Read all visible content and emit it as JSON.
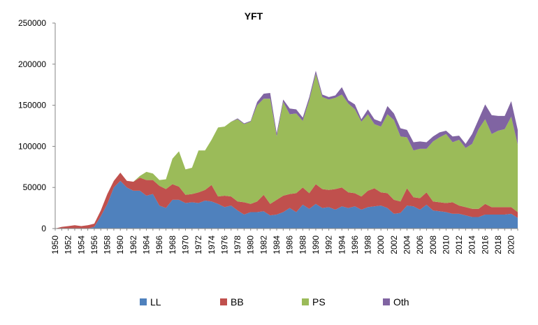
{
  "chart_data": {
    "type": "area",
    "stacked": true,
    "title": "YFT",
    "xlabel": "",
    "ylabel": "",
    "ylim": [
      0,
      250000
    ],
    "yticks": [
      0,
      50000,
      100000,
      150000,
      200000,
      250000
    ],
    "ytick_labels": [
      "0",
      "50000",
      "100000",
      "150000",
      "200000",
      "250000"
    ],
    "xlim": [
      1950,
      2021
    ],
    "xticks": [
      1950,
      1952,
      1954,
      1956,
      1958,
      1960,
      1962,
      1964,
      1966,
      1968,
      1970,
      1972,
      1974,
      1976,
      1978,
      1980,
      1982,
      1984,
      1986,
      1988,
      1990,
      1992,
      1994,
      1996,
      1998,
      2000,
      2002,
      2004,
      2006,
      2008,
      2010,
      2012,
      2014,
      2016,
      2018,
      2020
    ],
    "xtick_labels": [
      "1950",
      "1952",
      "1954",
      "1956",
      "1958",
      "1960",
      "1962",
      "1964",
      "1966",
      "1968",
      "1970",
      "1972",
      "1974",
      "1976",
      "1978",
      "1980",
      "1982",
      "1984",
      "1986",
      "1988",
      "1990",
      "1992",
      "1994",
      "1996",
      "1998",
      "2000",
      "2002",
      "2004",
      "2006",
      "2008",
      "2010",
      "2012",
      "2014",
      "2016",
      "2018",
      "2020"
    ],
    "grid": false,
    "legend_position": "bottom",
    "x": [
      1950,
      1951,
      1952,
      1953,
      1954,
      1955,
      1956,
      1957,
      1958,
      1959,
      1960,
      1961,
      1962,
      1963,
      1964,
      1965,
      1966,
      1967,
      1968,
      1969,
      1970,
      1971,
      1972,
      1973,
      1974,
      1975,
      1976,
      1977,
      1978,
      1979,
      1980,
      1981,
      1982,
      1983,
      1984,
      1985,
      1986,
      1987,
      1988,
      1989,
      1990,
      1991,
      1992,
      1993,
      1994,
      1995,
      1996,
      1997,
      1998,
      1999,
      2000,
      2001,
      2002,
      2003,
      2004,
      2005,
      2006,
      2007,
      2008,
      2009,
      2010,
      2011,
      2012,
      2013,
      2014,
      2015,
      2016,
      2017,
      2018,
      2019,
      2020,
      2021
    ],
    "series": [
      {
        "name": "LL",
        "color": "#4F81BD",
        "values": [
          0,
          0,
          0,
          0,
          0,
          0,
          2000,
          15000,
          30000,
          50000,
          58000,
          50000,
          46000,
          46000,
          40000,
          42000,
          28000,
          25000,
          35000,
          35000,
          31000,
          32000,
          31000,
          34000,
          33000,
          30000,
          26000,
          28000,
          22000,
          17000,
          20000,
          20000,
          21000,
          16000,
          17000,
          20000,
          25000,
          20000,
          29000,
          24000,
          30000,
          25000,
          26000,
          23000,
          27000,
          25000,
          27000,
          23000,
          26000,
          27000,
          28000,
          25000,
          18000,
          19000,
          28000,
          27000,
          23000,
          29000,
          22000,
          21000,
          20000,
          18000,
          18000,
          16000,
          14000,
          14000,
          17000,
          17000,
          17000,
          17000,
          18000,
          13000
        ]
      },
      {
        "name": "BB",
        "color": "#C0504D",
        "values": [
          0,
          2000,
          3000,
          4000,
          3000,
          4000,
          4000,
          7000,
          12000,
          8000,
          10000,
          8000,
          11000,
          16000,
          19000,
          17000,
          24000,
          23000,
          19000,
          16000,
          10000,
          10000,
          13000,
          13000,
          20000,
          9000,
          14000,
          11000,
          11000,
          15000,
          10000,
          13000,
          20000,
          14000,
          18000,
          20000,
          17000,
          23000,
          21000,
          19000,
          24000,
          23000,
          21000,
          25000,
          23000,
          19000,
          16000,
          16000,
          20000,
          22000,
          16000,
          18000,
          17000,
          14000,
          21000,
          11000,
          14000,
          15000,
          11000,
          11000,
          11000,
          14000,
          10000,
          10000,
          10000,
          10000,
          13000,
          9000,
          9000,
          9000,
          8000,
          7000
        ]
      },
      {
        "name": "PS",
        "color": "#9BBB59",
        "values": [
          0,
          0,
          0,
          0,
          0,
          0,
          0,
          0,
          0,
          0,
          0,
          0,
          0,
          2000,
          10000,
          8000,
          7000,
          12000,
          31000,
          43000,
          31000,
          32000,
          51000,
          48000,
          55000,
          84000,
          84000,
          91000,
          100000,
          95000,
          100000,
          117000,
          117000,
          128000,
          77000,
          114000,
          97000,
          97000,
          81000,
          113000,
          134000,
          112000,
          110000,
          111000,
          113000,
          108000,
          102000,
          91000,
          93000,
          78000,
          80000,
          96000,
          97000,
          79000,
          62000,
          57000,
          60000,
          53000,
          73000,
          79000,
          84000,
          73000,
          80000,
          72000,
          79000,
          97000,
          103000,
          89000,
          93000,
          95000,
          110000,
          82000
        ]
      },
      {
        "name": "Oth",
        "color": "#8064A2",
        "values": [
          0,
          0,
          0,
          0,
          0,
          0,
          0,
          0,
          0,
          0,
          0,
          0,
          0,
          0,
          0,
          0,
          0,
          0,
          0,
          0,
          0,
          0,
          0,
          0,
          0,
          0,
          0,
          0,
          1000,
          1000,
          1000,
          4000,
          6000,
          7000,
          4000,
          3000,
          7000,
          5000,
          4000,
          4000,
          4000,
          3000,
          3000,
          3000,
          9000,
          4000,
          6000,
          3000,
          6000,
          6000,
          6000,
          10000,
          8000,
          10000,
          9000,
          10000,
          9000,
          8000,
          6000,
          6000,
          4000,
          7000,
          5000,
          5000,
          12000,
          12000,
          18000,
          23000,
          18000,
          16000,
          19000,
          18000
        ]
      }
    ]
  }
}
